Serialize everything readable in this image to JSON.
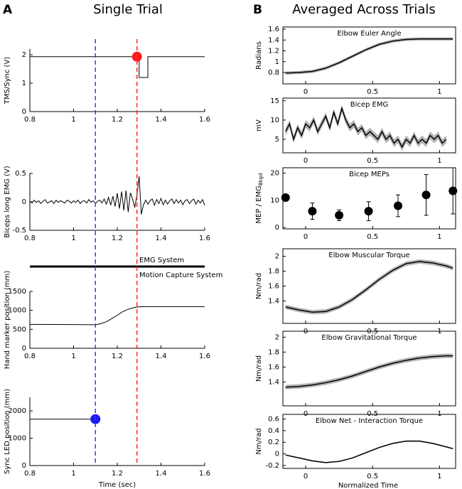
{
  "panel_a": {
    "label": "A",
    "title": "Single Trial",
    "xlabel": "Time (sec)",
    "markers": [
      {
        "x": 1.1,
        "color": "#3a3aff"
      },
      {
        "x": 1.29,
        "color": "#ff2a2a"
      }
    ],
    "sync_labels": [
      "EMG System",
      "Motion Capture System"
    ]
  },
  "panel_b": {
    "label": "B",
    "title": "Averaged  Across Trials",
    "xlabel": "Normalized Time"
  },
  "chart_data": [
    {
      "type": "line",
      "ylabel": "TMS/Sync (V)",
      "box": false,
      "color": "#000000",
      "x": [
        0.8,
        1.3,
        1.3,
        1.34,
        1.34,
        1.6
      ],
      "values": [
        1.93,
        1.93,
        1.2,
        1.2,
        1.93,
        1.93
      ],
      "highlight": {
        "x": 1.29,
        "y": 1.93,
        "color": "#ff1a1a"
      },
      "xlim": [
        0.8,
        1.6
      ],
      "xticks": [
        0.8,
        1,
        1.2,
        1.4,
        1.6
      ],
      "ylim": [
        0,
        2.2
      ],
      "yticks": [
        0,
        1,
        2
      ]
    },
    {
      "type": "line",
      "ylabel": "Biceps long EMG (V)",
      "box": false,
      "color": "#000000",
      "x": [
        0.8,
        0.81,
        0.82,
        0.83,
        0.84,
        0.85,
        0.86,
        0.87,
        0.88,
        0.89,
        0.9,
        0.91,
        0.92,
        0.93,
        0.94,
        0.95,
        0.96,
        0.97,
        0.98,
        0.99,
        1.0,
        1.01,
        1.02,
        1.03,
        1.04,
        1.05,
        1.06,
        1.07,
        1.08,
        1.09,
        1.1,
        1.11,
        1.12,
        1.13,
        1.14,
        1.15,
        1.16,
        1.17,
        1.18,
        1.19,
        1.2,
        1.21,
        1.22,
        1.23,
        1.24,
        1.25,
        1.26,
        1.27,
        1.28,
        1.29,
        1.3,
        1.31,
        1.32,
        1.33,
        1.34,
        1.35,
        1.36,
        1.37,
        1.38,
        1.39,
        1.4,
        1.41,
        1.42,
        1.43,
        1.44,
        1.45,
        1.46,
        1.47,
        1.48,
        1.49,
        1.5,
        1.51,
        1.52,
        1.53,
        1.54,
        1.55,
        1.56,
        1.57,
        1.58,
        1.59,
        1.6
      ],
      "values": [
        0.01,
        -0.02,
        0.03,
        -0.01,
        0.02,
        -0.03,
        0.01,
        0.04,
        -0.02,
        0.0,
        0.02,
        -0.03,
        0.03,
        -0.01,
        0.02,
        0.0,
        -0.02,
        0.03,
        0.01,
        -0.02,
        0.02,
        -0.01,
        0.03,
        -0.03,
        0.01,
        0.02,
        -0.02,
        0.04,
        -0.01,
        0.02,
        -0.03,
        0.01,
        0.03,
        -0.02,
        0.05,
        -0.04,
        0.08,
        -0.06,
        0.1,
        -0.08,
        0.15,
        -0.12,
        0.18,
        -0.15,
        0.2,
        -0.18,
        0.16,
        0.05,
        -0.1,
        0.12,
        0.45,
        -0.22,
        -0.05,
        0.03,
        -0.04,
        0.02,
        0.05,
        -0.06,
        0.04,
        -0.03,
        0.06,
        -0.05,
        0.03,
        -0.04,
        0.02,
        0.05,
        -0.03,
        0.04,
        -0.02,
        0.03,
        -0.05,
        0.02,
        0.04,
        -0.03,
        0.02,
        0.05,
        -0.04,
        0.03,
        -0.02,
        0.04,
        -0.06
      ],
      "xlim": [
        0.8,
        1.6
      ],
      "xticks": [
        0.8,
        1,
        1.2,
        1.4,
        1.6
      ],
      "ylim": [
        -0.5,
        0.5
      ],
      "yticks": [
        -0.5,
        0,
        0.5
      ]
    },
    {
      "type": "line",
      "ylabel": "Hand marker position (mm)",
      "box": false,
      "color": "#000000",
      "x": [
        0.8,
        1.0,
        1.1,
        1.12,
        1.15,
        1.18,
        1.2,
        1.22,
        1.25,
        1.28,
        1.3,
        1.35,
        1.4,
        1.5,
        1.6
      ],
      "values": [
        630,
        625,
        620,
        640,
        700,
        800,
        870,
        950,
        1030,
        1080,
        1095,
        1100,
        1100,
        1100,
        1100
      ],
      "xlim": [
        0.8,
        1.6
      ],
      "xticks": [
        0.8,
        1,
        1.2,
        1.4,
        1.6
      ],
      "ylim": [
        0,
        1500
      ],
      "yticks": [
        0,
        500,
        1000,
        1500
      ]
    },
    {
      "type": "line",
      "ylabel": "Sync LED position (mm)",
      "box": false,
      "color": "#000000",
      "x": [
        0.8,
        1.1
      ],
      "values": [
        1700,
        1700
      ],
      "highlight": {
        "x": 1.1,
        "y": 1700,
        "color": "#1a1aff"
      },
      "xlim": [
        0.8,
        1.6
      ],
      "xticks": [
        0.8,
        1,
        1.2,
        1.4,
        1.6
      ],
      "ylim": [
        0,
        2500
      ],
      "yticks": [
        0,
        1000,
        2000
      ]
    },
    {
      "type": "line",
      "title": "Elbow Euler Angle",
      "ylabel": "Radians",
      "box": true,
      "color": "#000000",
      "spread": 0.03,
      "x": [
        -0.15,
        -0.05,
        0.05,
        0.15,
        0.25,
        0.35,
        0.45,
        0.55,
        0.65,
        0.75,
        0.85,
        0.95,
        1.05,
        1.1
      ],
      "values": [
        0.79,
        0.8,
        0.82,
        0.88,
        0.98,
        1.1,
        1.22,
        1.32,
        1.38,
        1.41,
        1.42,
        1.42,
        1.42,
        1.42
      ],
      "xlim": [
        -0.17,
        1.12
      ],
      "xticks": [
        0,
        0.5,
        1
      ],
      "ylim": [
        0.59,
        1.64
      ],
      "yticks": [
        0.8,
        1,
        1.2,
        1.4,
        1.6
      ]
    },
    {
      "type": "line",
      "title": "Bicep EMG",
      "ylabel": "mV",
      "box": true,
      "color": "#000000",
      "spread": 1,
      "x": [
        -0.15,
        -0.12,
        -0.09,
        -0.06,
        -0.03,
        0,
        0.03,
        0.06,
        0.09,
        0.12,
        0.15,
        0.18,
        0.21,
        0.24,
        0.27,
        0.3,
        0.33,
        0.36,
        0.39,
        0.42,
        0.45,
        0.48,
        0.51,
        0.54,
        0.57,
        0.6,
        0.63,
        0.66,
        0.69,
        0.72,
        0.75,
        0.78,
        0.81,
        0.84,
        0.87,
        0.9,
        0.93,
        0.96,
        0.99,
        1.02,
        1.05
      ],
      "values": [
        7,
        9,
        5,
        8,
        6,
        9,
        8,
        10,
        7,
        9,
        11,
        8,
        12,
        9,
        13,
        10,
        8,
        9,
        7,
        8,
        6,
        7,
        6,
        5,
        7,
        5,
        6,
        4,
        5,
        3,
        5,
        4,
        6,
        4,
        5,
        4,
        6,
        5,
        6,
        4,
        5
      ],
      "xlim": [
        -0.17,
        1.12
      ],
      "xticks": [
        0,
        0.5,
        1
      ],
      "ylim": [
        1.5,
        15.7
      ],
      "yticks": [
        5,
        10,
        15
      ]
    },
    {
      "type": "scatter",
      "title": "Bicep MEPs",
      "ylabel": "MEP / EMG",
      "ylabel_sub": "Bkgd",
      "box": true,
      "color": "#000000",
      "x": [
        -0.15,
        0.05,
        0.25,
        0.47,
        0.69,
        0.9,
        1.1
      ],
      "values": [
        11,
        6,
        4.5,
        6,
        8,
        12,
        13.5
      ],
      "errors": [
        0,
        3,
        2,
        3.5,
        4,
        7.5,
        8.5
      ],
      "xlim": [
        -0.17,
        1.12
      ],
      "xticks": [
        0,
        0.5,
        1
      ],
      "ylim": [
        -0.5,
        22
      ],
      "yticks": [
        0,
        10,
        20
      ]
    },
    {
      "type": "line",
      "title": "Elbow Muscular Torque",
      "ylabel": "Nm/rad",
      "box": true,
      "color": "#000000",
      "spread": 0.03,
      "x": [
        -0.15,
        -0.05,
        0.05,
        0.15,
        0.25,
        0.35,
        0.45,
        0.55,
        0.65,
        0.75,
        0.85,
        0.95,
        1.05,
        1.1
      ],
      "values": [
        1.32,
        1.28,
        1.25,
        1.26,
        1.32,
        1.42,
        1.55,
        1.69,
        1.81,
        1.9,
        1.93,
        1.91,
        1.87,
        1.84
      ],
      "xlim": [
        -0.17,
        1.12
      ],
      "xticks": [
        0,
        0.5,
        1
      ],
      "ylim": [
        1.1,
        2.1
      ],
      "yticks": [
        1.4,
        1.6,
        1.8,
        2
      ]
    },
    {
      "type": "line",
      "title": "Elbow Gravitational Torque",
      "ylabel": "Nm/rad",
      "box": true,
      "color": "#000000",
      "spread": 0.03,
      "x": [
        -0.15,
        -0.05,
        0.05,
        0.15,
        0.25,
        0.35,
        0.45,
        0.55,
        0.65,
        0.75,
        0.85,
        0.95,
        1.05,
        1.1
      ],
      "values": [
        1.33,
        1.34,
        1.36,
        1.39,
        1.43,
        1.48,
        1.54,
        1.6,
        1.65,
        1.69,
        1.72,
        1.74,
        1.75,
        1.75
      ],
      "xlim": [
        -0.17,
        1.12
      ],
      "xticks": [
        0,
        0.5,
        1
      ],
      "ylim": [
        1.08,
        2.08
      ],
      "yticks": [
        1.4,
        1.6,
        1.8,
        2
      ]
    },
    {
      "type": "line",
      "title": "Elbow Net - Interaction Torque",
      "ylabel": "Nm/rad",
      "box": true,
      "color": "#000000",
      "spread": 0.01,
      "x": [
        -0.15,
        -0.05,
        0.05,
        0.15,
        0.25,
        0.35,
        0.45,
        0.55,
        0.65,
        0.75,
        0.85,
        0.95,
        1.05,
        1.1
      ],
      "values": [
        -0.02,
        -0.07,
        -0.12,
        -0.15,
        -0.13,
        -0.07,
        0.02,
        0.11,
        0.18,
        0.22,
        0.22,
        0.18,
        0.12,
        0.09
      ],
      "xlim": [
        -0.17,
        1.12
      ],
      "xticks": [
        0,
        0.5,
        1
      ],
      "ylim": [
        -0.25,
        0.68
      ],
      "yticks": [
        -0.2,
        0,
        0.2,
        0.4,
        0.6
      ]
    }
  ]
}
